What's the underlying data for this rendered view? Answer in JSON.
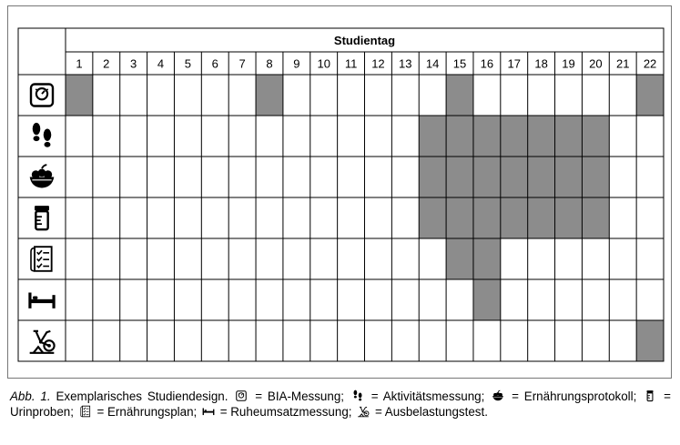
{
  "table": {
    "header": "Studientag",
    "days": [
      "1",
      "2",
      "3",
      "4",
      "5",
      "6",
      "7",
      "8",
      "9",
      "10",
      "11",
      "12",
      "13",
      "14",
      "15",
      "16",
      "17",
      "18",
      "19",
      "20",
      "21",
      "22"
    ],
    "rows": [
      {
        "icon": "scale-icon",
        "label": "BIA-Messung",
        "marked_days": [
          1,
          8,
          15,
          22
        ]
      },
      {
        "icon": "footprints-icon",
        "label": "Aktivitätsmessung",
        "marked_days": [
          14,
          15,
          16,
          17,
          18,
          19,
          20
        ]
      },
      {
        "icon": "fruit-bowl-icon",
        "label": "Ernährungsprotokoll",
        "marked_days": [
          14,
          15,
          16,
          17,
          18,
          19,
          20
        ]
      },
      {
        "icon": "urine-sample-icon",
        "label": "Urinproben",
        "marked_days": [
          14,
          15,
          16,
          17,
          18,
          19,
          20
        ]
      },
      {
        "icon": "checklist-icon",
        "label": "Ernährungsplan",
        "marked_days": [
          15,
          16
        ]
      },
      {
        "icon": "bed-icon",
        "label": "Ruheumsatzmessung",
        "marked_days": [
          16
        ]
      },
      {
        "icon": "exercise-bike-icon",
        "label": "Ausbelastungstest",
        "marked_days": [
          22
        ]
      }
    ],
    "fill_color": "#8c8c8c",
    "line_color": "#000000"
  },
  "caption": {
    "prefix": "Abb. 1.",
    "title": "Exemplarisches Studiendesign.",
    "legend": [
      {
        "icon": "scale-icon",
        "text": "= BIA-Messung;"
      },
      {
        "icon": "footprints-icon",
        "text": "= Aktivitätsmessung;"
      },
      {
        "icon": "fruit-bowl-icon",
        "text": "= Ernährungsprotokoll;"
      },
      {
        "icon": "urine-sample-icon",
        "text": "= Urinproben;"
      },
      {
        "icon": "checklist-icon",
        "text": "= Ernährungsplan;"
      },
      {
        "icon": "bed-icon",
        "text": "= Ruheumsatzmessung;"
      },
      {
        "icon": "exercise-bike-icon",
        "text": "= Ausbelastungstest."
      }
    ]
  }
}
